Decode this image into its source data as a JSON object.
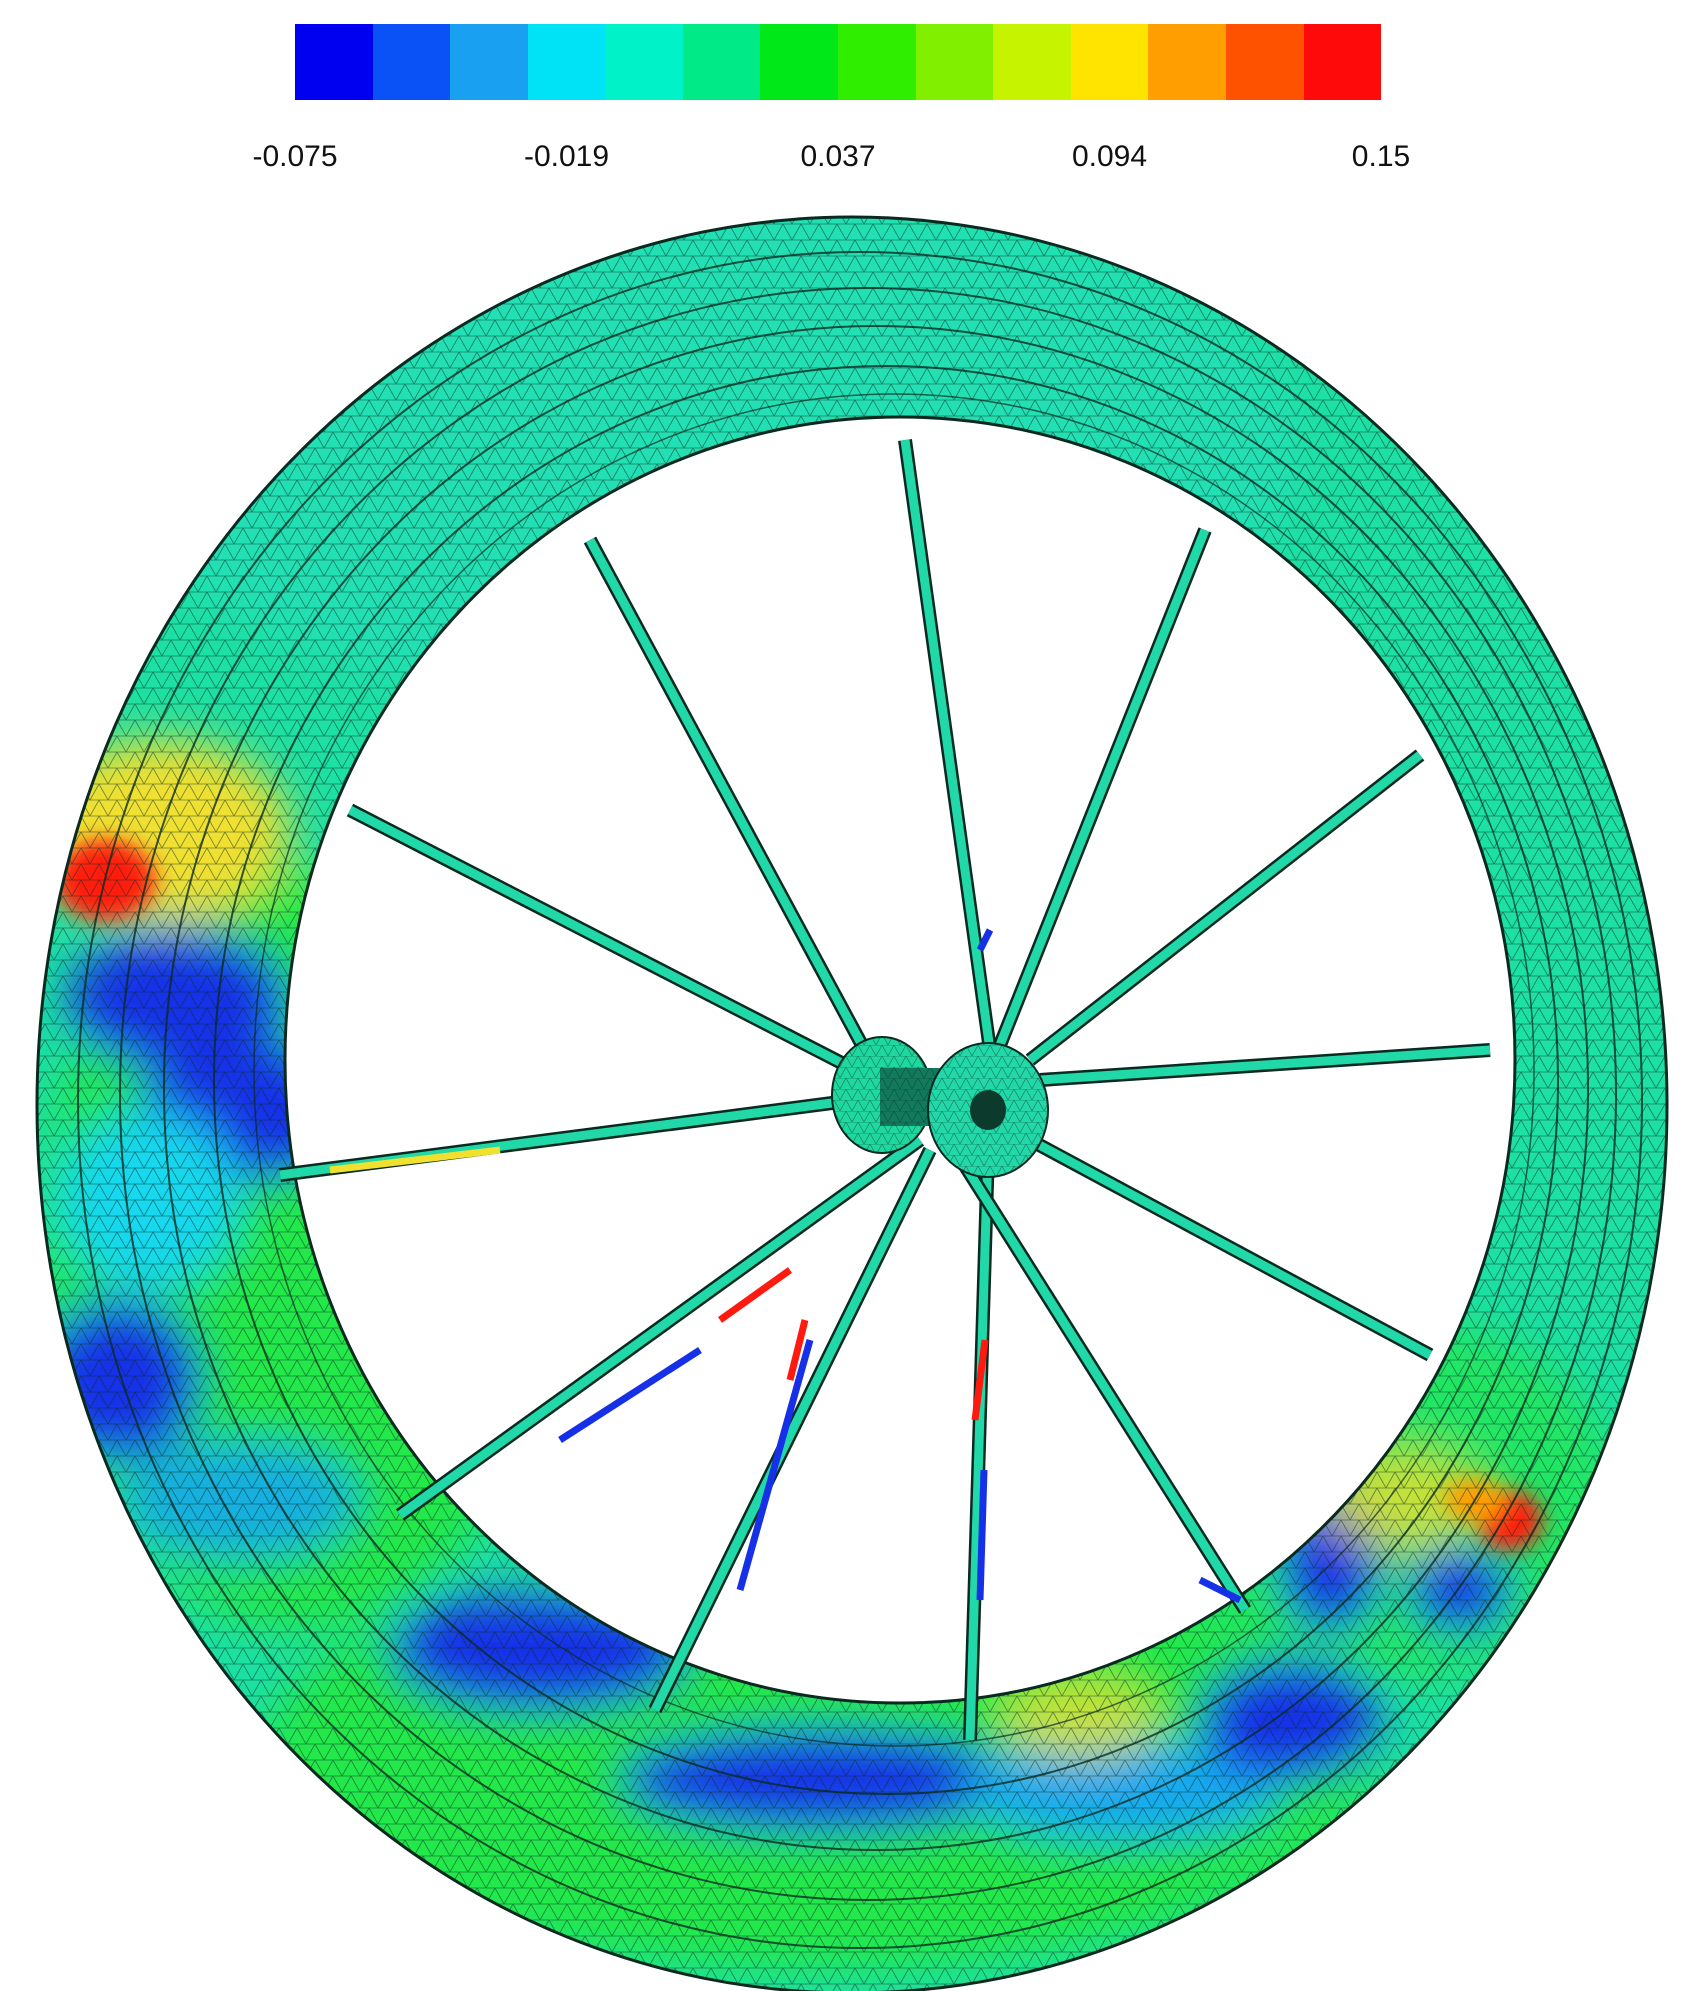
{
  "legend": {
    "colors": [
      "#0000f0",
      "#0a52f5",
      "#1aa0f0",
      "#00e2f5",
      "#00f2c8",
      "#00ea88",
      "#00e818",
      "#30ee00",
      "#80f000",
      "#c6f400",
      "#ffe400",
      "#ff9e00",
      "#ff5200",
      "#ff0a0a"
    ],
    "ticks": [
      {
        "label": "-0.075",
        "frac": 0.0
      },
      {
        "label": "-0.019",
        "frac": 0.25
      },
      {
        "label": "0.037",
        "frac": 0.5
      },
      {
        "label": "0.094",
        "frac": 0.75
      },
      {
        "label": "0.15",
        "frac": 1.0
      }
    ]
  },
  "figure": {
    "icons": [
      "wheel-rim",
      "spoke",
      "hub",
      "axle-hole"
    ],
    "colors": {
      "rim_base": "#1de0a4",
      "rim_upper": "#28e0c0",
      "low_strain": "#1630e8",
      "mid_strain": "#22e84a",
      "high_strain": "#ff1a10",
      "caution": "#f0e030",
      "mesh": "#0a2a20",
      "spoke": "#20d8a8",
      "hub": "#22d8a8"
    }
  }
}
